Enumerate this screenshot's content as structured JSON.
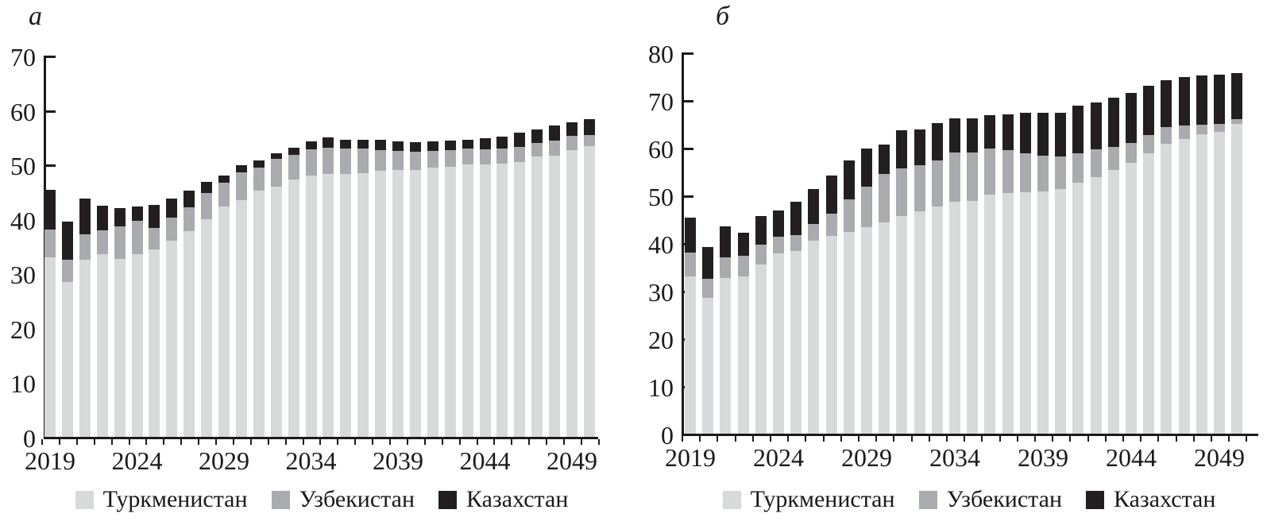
{
  "chart_data": [
    {
      "type": "bar",
      "stacked": true,
      "panel_label": "а",
      "title": "",
      "xlabel": "",
      "ylabel": "",
      "ylim": [
        0,
        70
      ],
      "y_axis": {
        "ticks": [
          0,
          10,
          20,
          30,
          40,
          50,
          60,
          70
        ]
      },
      "x_axis": {
        "tick_labels": [
          "2019",
          "2024",
          "2029",
          "2034",
          "2039",
          "2044",
          "2049"
        ],
        "tick_every": 5
      },
      "categories": [
        2019,
        2020,
        2021,
        2022,
        2023,
        2024,
        2025,
        2026,
        2027,
        2028,
        2029,
        2030,
        2031,
        2032,
        2033,
        2034,
        2035,
        2036,
        2037,
        2038,
        2039,
        2040,
        2041,
        2042,
        2043,
        2044,
        2045,
        2046,
        2047,
        2048,
        2049,
        2050
      ],
      "legend_position": "bottom",
      "grid": false,
      "series": [
        {
          "name": "Туркменистан",
          "color": "#d8d9db",
          "values": [
            33.0,
            28.5,
            32.5,
            33.5,
            32.7,
            33.6,
            34.4,
            36.0,
            37.8,
            40.0,
            42.3,
            43.5,
            45.2,
            46.0,
            47.2,
            48.0,
            48.3,
            48.2,
            48.4,
            48.8,
            49.0,
            49.0,
            49.5,
            49.6,
            50.0,
            50.0,
            50.2,
            50.4,
            51.5,
            51.6,
            52.6,
            53.4
          ]
        },
        {
          "name": "Узбекистан",
          "color": "#a9abae",
          "values": [
            5.0,
            4.0,
            4.7,
            4.4,
            6.0,
            6.0,
            4.0,
            4.3,
            4.3,
            4.8,
            4.3,
            5.0,
            4.3,
            5.0,
            4.6,
            4.8,
            4.8,
            4.7,
            4.6,
            3.9,
            3.5,
            3.3,
            3.0,
            3.1,
            2.9,
            2.8,
            2.8,
            2.8,
            2.4,
            2.8,
            2.6,
            2.0
          ]
        },
        {
          "name": "Казахстан",
          "color": "#231f20",
          "values": [
            7.3,
            7.0,
            6.5,
            4.6,
            3.3,
            2.7,
            4.2,
            3.4,
            3.1,
            2.0,
            1.4,
            1.4,
            1.3,
            1.1,
            1.3,
            1.5,
            1.9,
            1.7,
            1.6,
            1.8,
            1.8,
            1.8,
            1.8,
            1.7,
            1.6,
            2.0,
            2.1,
            2.6,
            2.6,
            2.8,
            2.6,
            3.0
          ]
        }
      ]
    },
    {
      "type": "bar",
      "stacked": true,
      "panel_label": "б",
      "title": "",
      "xlabel": "",
      "ylabel": "",
      "ylim": [
        0,
        80
      ],
      "y_axis": {
        "ticks": [
          0,
          10,
          20,
          30,
          40,
          50,
          60,
          70,
          80
        ]
      },
      "x_axis": {
        "tick_labels": [
          "2019",
          "2024",
          "2029",
          "2034",
          "2039",
          "2044",
          "2049"
        ],
        "tick_every": 5
      },
      "categories": [
        2019,
        2020,
        2021,
        2022,
        2023,
        2024,
        2025,
        2026,
        2027,
        2028,
        2029,
        2030,
        2031,
        2032,
        2033,
        2034,
        2035,
        2036,
        2037,
        2038,
        2039,
        2040,
        2041,
        2042,
        2043,
        2044,
        2045,
        2046,
        2047,
        2048,
        2049,
        2050
      ],
      "legend_position": "bottom",
      "grid": false,
      "series": [
        {
          "name": "Туркменистан",
          "color": "#d8d9db",
          "values": [
            33.0,
            28.5,
            32.6,
            33.0,
            35.5,
            37.8,
            38.3,
            40.5,
            41.5,
            42.3,
            43.3,
            44.3,
            45.6,
            46.7,
            47.6,
            48.6,
            48.8,
            50.1,
            50.5,
            50.6,
            50.9,
            51.4,
            52.6,
            53.9,
            55.3,
            56.8,
            58.8,
            60.8,
            61.8,
            62.9,
            63.4,
            65.0
          ]
        },
        {
          "name": "Узбекистан",
          "color": "#a9abae",
          "values": [
            5.0,
            4.0,
            4.4,
            4.3,
            4.2,
            3.6,
            3.4,
            3.5,
            4.7,
            6.9,
            8.5,
            10.2,
            10.0,
            9.7,
            9.7,
            10.4,
            10.2,
            9.7,
            9.0,
            8.2,
            7.5,
            6.7,
            6.2,
            5.8,
            4.9,
            4.2,
            3.9,
            3.5,
            2.8,
            1.9,
            1.6,
            1.0
          ]
        },
        {
          "name": "Казахстан",
          "color": "#231f20",
          "values": [
            7.3,
            6.7,
            6.5,
            4.8,
            5.9,
            5.5,
            6.9,
            7.3,
            7.9,
            8.1,
            8.0,
            6.2,
            8.1,
            7.5,
            7.8,
            7.2,
            7.2,
            7.1,
            7.5,
            8.6,
            9.0,
            9.3,
            10.0,
            9.8,
            10.3,
            10.5,
            10.3,
            9.9,
            10.2,
            10.4,
            10.4,
            9.7
          ]
        }
      ]
    }
  ],
  "colors": {
    "axis": "#1a1a1a",
    "turkmenistan": "#d8d9db",
    "uzbekistan": "#a9abae",
    "kazakhstan": "#231f20"
  }
}
